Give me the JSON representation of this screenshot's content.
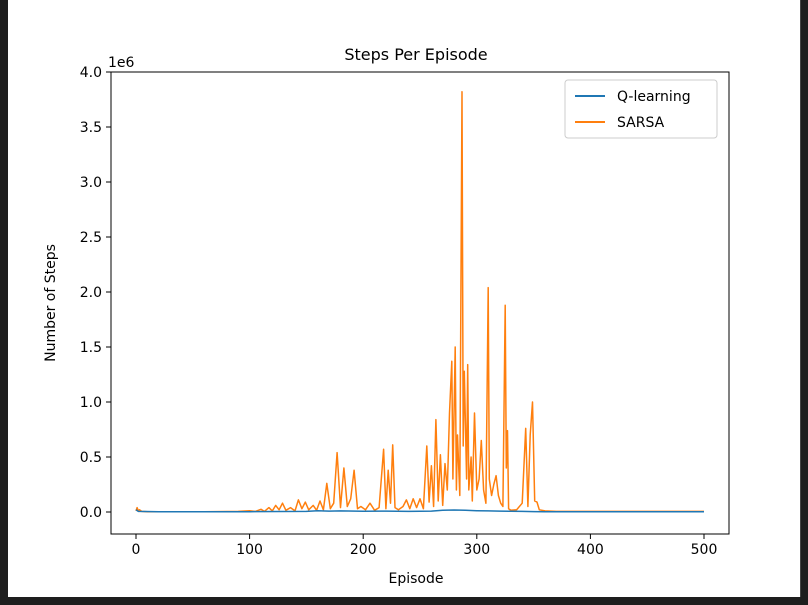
{
  "chart_data": {
    "type": "line",
    "title": "Steps Per Episode",
    "xlabel": "Episode",
    "ylabel": "Number of Steps",
    "y_offset_label": "1e6",
    "xlim": [
      -22,
      522
    ],
    "ylim": [
      -200000,
      4000000
    ],
    "x_ticks": [
      0,
      100,
      200,
      300,
      400,
      500
    ],
    "x_tick_labels": [
      "0",
      "100",
      "200",
      "300",
      "400",
      "500"
    ],
    "y_ticks": [
      0,
      500000,
      1000000,
      1500000,
      2000000,
      2500000,
      3000000,
      3500000,
      4000000
    ],
    "y_tick_labels": [
      "0.0",
      "0.5",
      "1.0",
      "1.5",
      "2.0",
      "2.5",
      "3.0",
      "3.5",
      "4.0"
    ],
    "grid": false,
    "legend_position": "top-right",
    "series": [
      {
        "name": "Q-learning",
        "color": "#1f77b4",
        "points": [
          [
            0,
            20000
          ],
          [
            2,
            5000
          ],
          [
            20,
            3000
          ],
          [
            100,
            3000
          ],
          [
            150,
            5000
          ],
          [
            160,
            12000
          ],
          [
            170,
            8000
          ],
          [
            180,
            10000
          ],
          [
            200,
            6000
          ],
          [
            220,
            8000
          ],
          [
            240,
            5000
          ],
          [
            260,
            8000
          ],
          [
            270,
            15000
          ],
          [
            280,
            18000
          ],
          [
            290,
            15000
          ],
          [
            300,
            12000
          ],
          [
            310,
            10000
          ],
          [
            320,
            8000
          ],
          [
            330,
            6000
          ],
          [
            340,
            5000
          ],
          [
            350,
            4000
          ],
          [
            360,
            3000
          ],
          [
            400,
            2000
          ],
          [
            450,
            2000
          ],
          [
            500,
            2000
          ]
        ]
      },
      {
        "name": "SARSA",
        "color": "#ff7f0e",
        "points": [
          [
            0,
            10000
          ],
          [
            1,
            40000
          ],
          [
            2,
            10000
          ],
          [
            3,
            20000
          ],
          [
            5,
            5000
          ],
          [
            10,
            3000
          ],
          [
            30,
            3000
          ],
          [
            60,
            3000
          ],
          [
            90,
            5000
          ],
          [
            100,
            12000
          ],
          [
            105,
            5000
          ],
          [
            110,
            25000
          ],
          [
            113,
            5000
          ],
          [
            117,
            40000
          ],
          [
            120,
            10000
          ],
          [
            123,
            60000
          ],
          [
            126,
            20000
          ],
          [
            129,
            80000
          ],
          [
            132,
            15000
          ],
          [
            136,
            40000
          ],
          [
            140,
            10000
          ],
          [
            143,
            110000
          ],
          [
            146,
            30000
          ],
          [
            149,
            90000
          ],
          [
            152,
            20000
          ],
          [
            156,
            60000
          ],
          [
            159,
            15000
          ],
          [
            162,
            100000
          ],
          [
            165,
            20000
          ],
          [
            168,
            260000
          ],
          [
            171,
            30000
          ],
          [
            174,
            80000
          ],
          [
            177,
            540000
          ],
          [
            180,
            40000
          ],
          [
            183,
            400000
          ],
          [
            186,
            50000
          ],
          [
            189,
            120000
          ],
          [
            192,
            380000
          ],
          [
            195,
            30000
          ],
          [
            198,
            50000
          ],
          [
            202,
            20000
          ],
          [
            206,
            80000
          ],
          [
            210,
            15000
          ],
          [
            214,
            40000
          ],
          [
            218,
            570000
          ],
          [
            220,
            30000
          ],
          [
            222,
            380000
          ],
          [
            224,
            80000
          ],
          [
            226,
            610000
          ],
          [
            228,
            40000
          ],
          [
            231,
            20000
          ],
          [
            235,
            50000
          ],
          [
            238,
            110000
          ],
          [
            241,
            30000
          ],
          [
            244,
            120000
          ],
          [
            247,
            40000
          ],
          [
            250,
            120000
          ],
          [
            253,
            30000
          ],
          [
            256,
            600000
          ],
          [
            258,
            90000
          ],
          [
            260,
            420000
          ],
          [
            262,
            50000
          ],
          [
            264,
            840000
          ],
          [
            266,
            100000
          ],
          [
            268,
            520000
          ],
          [
            270,
            60000
          ],
          [
            272,
            440000
          ],
          [
            274,
            200000
          ],
          [
            276,
            900000
          ],
          [
            278,
            1370000
          ],
          [
            279,
            300000
          ],
          [
            281,
            1500000
          ],
          [
            282,
            200000
          ],
          [
            283,
            700000
          ],
          [
            285,
            150000
          ],
          [
            287,
            3820000
          ],
          [
            288,
            600000
          ],
          [
            289,
            1280000
          ],
          [
            291,
            300000
          ],
          [
            292,
            1340000
          ],
          [
            293,
            200000
          ],
          [
            295,
            500000
          ],
          [
            296,
            100000
          ],
          [
            298,
            900000
          ],
          [
            300,
            200000
          ],
          [
            302,
            300000
          ],
          [
            304,
            650000
          ],
          [
            306,
            200000
          ],
          [
            308,
            80000
          ],
          [
            310,
            2040000
          ],
          [
            311,
            300000
          ],
          [
            313,
            150000
          ],
          [
            315,
            250000
          ],
          [
            317,
            330000
          ],
          [
            319,
            150000
          ],
          [
            321,
            80000
          ],
          [
            323,
            50000
          ],
          [
            325,
            1880000
          ],
          [
            326,
            400000
          ],
          [
            327,
            740000
          ],
          [
            328,
            30000
          ],
          [
            330,
            15000
          ],
          [
            335,
            20000
          ],
          [
            340,
            80000
          ],
          [
            343,
            760000
          ],
          [
            345,
            50000
          ],
          [
            347,
            700000
          ],
          [
            349,
            1000000
          ],
          [
            351,
            100000
          ],
          [
            353,
            90000
          ],
          [
            355,
            20000
          ],
          [
            360,
            10000
          ],
          [
            370,
            5000
          ],
          [
            400,
            5000
          ],
          [
            450,
            5000
          ],
          [
            500,
            5000
          ]
        ]
      }
    ]
  }
}
